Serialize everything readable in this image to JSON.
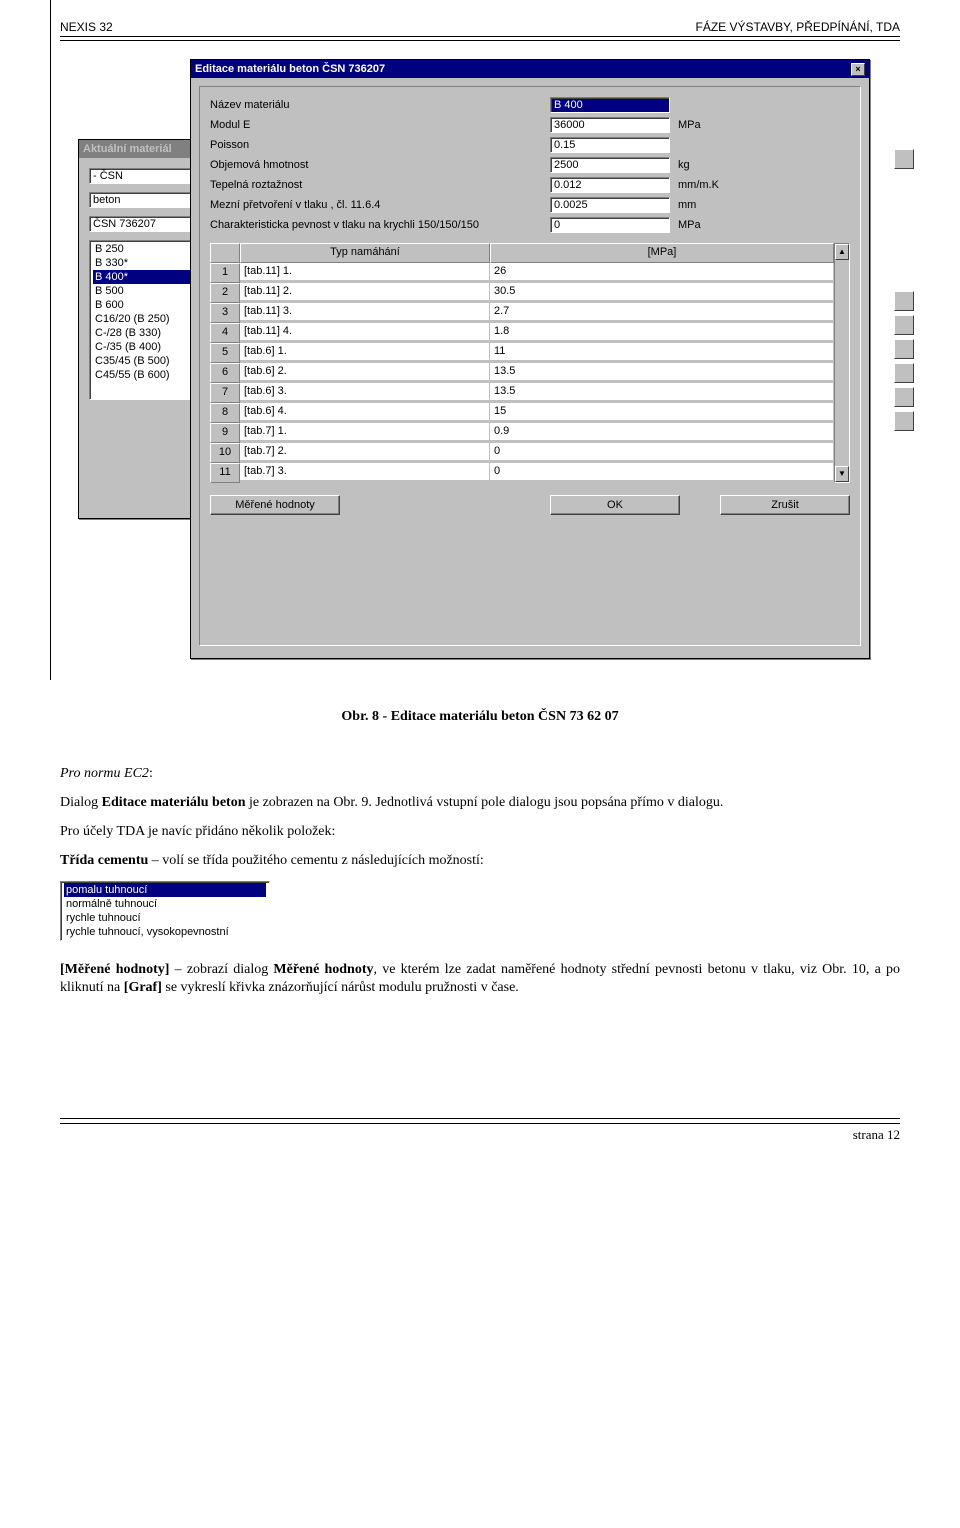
{
  "header": {
    "left": "NEXIS 32",
    "right": "FÁZE VÝSTAVBY, PŘEDPÍNÁNÍ, TDA"
  },
  "back_window": {
    "title": "Aktuální materiál",
    "fields": [
      "- ČSN",
      "beton",
      "ČSN 736207"
    ],
    "list": [
      "B 250",
      "B 330*",
      "B 400*",
      "B 500",
      "B 600",
      "C16/20 (B 250)",
      "C-/28 (B 330)",
      "C-/35 (B 400)",
      "C35/45 (B 500)",
      "C45/55 (B 600)"
    ],
    "selected_index": 2
  },
  "front_window": {
    "title": "Editace materiálu beton ČSN 736207",
    "props": [
      {
        "label": "Název materiálu",
        "value": "B 400",
        "unit": "",
        "selected": true
      },
      {
        "label": "Modul E",
        "value": "36000",
        "unit": "MPa"
      },
      {
        "label": "Poisson",
        "value": "0.15",
        "unit": ""
      },
      {
        "label": "Objemová hmotnost",
        "value": "2500",
        "unit": "kg"
      },
      {
        "label": "Tepelná roztažnost",
        "value": "0.012",
        "unit": "mm/m.K"
      },
      {
        "label": "Mezní přetvoření v tlaku , čl. 11.6.4",
        "value": "0.0025",
        "unit": "mm"
      },
      {
        "label": "Charakteristicka pevnost v tlaku na krychli 150/150/150",
        "value": "0",
        "unit": "MPa"
      }
    ],
    "grid": {
      "headers": {
        "typ": "Typ namáhání",
        "mpa": "[MPa]"
      },
      "rows": [
        {
          "n": "1",
          "t": "[tab.11]  1.",
          "v": "26"
        },
        {
          "n": "2",
          "t": "[tab.11]  2.",
          "v": "30.5"
        },
        {
          "n": "3",
          "t": "[tab.11]  3.",
          "v": "2.7"
        },
        {
          "n": "4",
          "t": "[tab.11]  4.",
          "v": "1.8"
        },
        {
          "n": "5",
          "t": "[tab.6]   1.",
          "v": "11"
        },
        {
          "n": "6",
          "t": "[tab.6]   2.",
          "v": "13.5"
        },
        {
          "n": "7",
          "t": "[tab.6]   3.",
          "v": "13.5"
        },
        {
          "n": "8",
          "t": "[tab.6]   4.",
          "v": "15"
        },
        {
          "n": "9",
          "t": "[tab.7]   1.",
          "v": "0.9"
        },
        {
          "n": "10",
          "t": "[tab.7]   2.",
          "v": "0"
        },
        {
          "n": "11",
          "t": "[tab.7]   3.",
          "v": "0"
        }
      ]
    },
    "buttons": {
      "measured": "Měřené hodnoty",
      "ok": "OK",
      "cancel": "Zrušit"
    }
  },
  "caption": "Obr. 8 - Editace materiálu beton ČSN 73 62 07",
  "text": {
    "p1_it": "Pro normu EC2",
    "p1_tail": ":",
    "p2a": "Dialog  ",
    "p2b": "Editace materiálu beton",
    "p2c": " je zobrazen na Obr. 9. Jednotlivá vstupní pole dialogu jsou popsána přímo v dialogu.",
    "p3": "Pro účely TDA je navíc přidáno několik položek:",
    "p4a": "Třída cementu",
    "p4b": " – volí se třída použitého cementu z následujících možností:",
    "p5a": "[Měřené hodnoty]",
    "p5b": " – zobrazí dialog ",
    "p5c": "Měřené hodnoty",
    "p5d": ", ve kterém lze zadat naměřené hodnoty střední pevnosti betonu v tlaku, viz Obr. 10, a po kliknutí na ",
    "p5e": "[Graf]",
    "p5f": " se vykreslí křivka znázorňující nárůst modulu pružnosti v čase."
  },
  "cement_list": {
    "items": [
      "pomalu tuhnoucí",
      "normálně tuhnoucí",
      "rychle tuhnoucí",
      "rychle tuhnoucí, vysokopevnostní"
    ],
    "selected_index": 0
  },
  "footer": "strana 12"
}
